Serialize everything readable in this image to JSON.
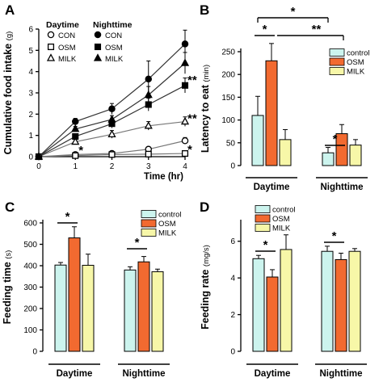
{
  "colors": {
    "control": "#ccf4ee",
    "OSM": "#f26a30",
    "MILK": "#f7f7a8"
  },
  "chart_data": [
    {
      "panel": "A",
      "type": "line",
      "ylabel": "Cumulative food intake",
      "yunit": "(g)",
      "xlabel": "Time (hr)",
      "ylim": [
        0,
        6
      ],
      "xlim": [
        0,
        4
      ],
      "xticks": [
        0,
        1,
        2,
        3,
        4
      ],
      "yticks": [
        0,
        1,
        2,
        3,
        4,
        5,
        6
      ],
      "legend_headers": [
        "Daytime",
        "Nighttime"
      ],
      "series": [
        {
          "name": "CON",
          "period": "Daytime",
          "marker": "open-circle",
          "x": [
            0,
            1,
            2,
            3,
            4
          ],
          "y": [
            0.0,
            0.1,
            0.15,
            0.35,
            0.75
          ],
          "err": [
            0,
            0.05,
            0.06,
            0.1,
            0.15
          ]
        },
        {
          "name": "OSM",
          "period": "Daytime",
          "marker": "open-square",
          "x": [
            0,
            1,
            2,
            3,
            4
          ],
          "y": [
            0.0,
            0.05,
            0.1,
            0.12,
            0.15
          ],
          "err": [
            0,
            0.03,
            0.04,
            0.05,
            0.05
          ]
        },
        {
          "name": "MILK",
          "period": "Daytime",
          "marker": "open-triangle",
          "x": [
            0,
            1,
            2,
            3,
            4
          ],
          "y": [
            0.0,
            0.7,
            1.05,
            1.45,
            1.65
          ],
          "err": [
            0,
            0.12,
            0.18,
            0.2,
            0.22
          ]
        },
        {
          "name": "CON",
          "period": "Nighttime",
          "marker": "filled-circle",
          "x": [
            0,
            1,
            2,
            3,
            4
          ],
          "y": [
            0.0,
            1.65,
            2.25,
            3.65,
            5.3
          ],
          "err": [
            0,
            0.15,
            0.25,
            0.85,
            0.65
          ]
        },
        {
          "name": "OSM",
          "period": "Nighttime",
          "marker": "filled-square",
          "x": [
            0,
            1,
            2,
            3,
            4
          ],
          "y": [
            0.0,
            0.95,
            1.55,
            2.45,
            3.35
          ],
          "err": [
            0,
            0.1,
            0.2,
            0.3,
            0.35
          ]
        },
        {
          "name": "MILK",
          "period": "Nighttime",
          "marker": "filled-triangle",
          "x": [
            0,
            1,
            2,
            3,
            4
          ],
          "y": [
            0.0,
            1.3,
            1.75,
            2.9,
            4.4
          ],
          "err": [
            0,
            0.12,
            0.18,
            0.4,
            0.5
          ]
        }
      ],
      "annotations": [
        {
          "text": "**",
          "x": 4,
          "y": 3.6
        },
        {
          "text": "**",
          "x": 4,
          "y": 1.8
        },
        {
          "text": "*",
          "x": 4,
          "y": 0.35
        },
        {
          "text": "*",
          "x": 1,
          "y": 0.3
        }
      ]
    },
    {
      "panel": "B",
      "type": "bar",
      "ylabel": "Latency to eat",
      "yunit": "(min)",
      "ylim": [
        0,
        250
      ],
      "yticks": [
        0,
        50,
        100,
        150,
        200,
        250
      ],
      "groups": [
        "Daytime",
        "Nighttime"
      ],
      "series": [
        {
          "name": "control",
          "values": [
            110,
            28
          ],
          "err": [
            42,
            12
          ]
        },
        {
          "name": "OSM",
          "values": [
            230,
            70
          ],
          "err": [
            38,
            20
          ]
        },
        {
          "name": "MILK",
          "values": [
            57,
            45
          ],
          "err": [
            22,
            12
          ]
        }
      ],
      "legend": [
        "control",
        "OSM",
        "MILK"
      ],
      "annotations": [
        "*",
        "*",
        "**",
        "*"
      ]
    },
    {
      "panel": "C",
      "type": "bar",
      "ylabel": "Feeding time",
      "yunit": "(s)",
      "ylim": [
        0,
        600
      ],
      "yticks": [
        0,
        100,
        200,
        300,
        400,
        500,
        600
      ],
      "groups": [
        "Daytime",
        "Nighttime"
      ],
      "series": [
        {
          "name": "control",
          "values": [
            403,
            380
          ],
          "err": [
            12,
            15
          ]
        },
        {
          "name": "OSM",
          "values": [
            530,
            418
          ],
          "err": [
            52,
            25
          ]
        },
        {
          "name": "MILK",
          "values": [
            402,
            372
          ],
          "err": [
            52,
            12
          ]
        }
      ],
      "legend": [
        "control",
        "OSM",
        "MILK"
      ],
      "annotations": [
        "*",
        "*"
      ]
    },
    {
      "panel": "D",
      "type": "bar",
      "ylabel": "Feeding rate",
      "yunit": "(mg/s)",
      "ylim": [
        0,
        7
      ],
      "yticks": [
        0,
        2,
        4,
        6
      ],
      "groups": [
        "Daytime",
        "Nighttime"
      ],
      "series": [
        {
          "name": "control",
          "values": [
            5.05,
            5.45
          ],
          "err": [
            0.18,
            0.28
          ]
        },
        {
          "name": "OSM",
          "values": [
            4.05,
            5.0
          ],
          "err": [
            0.4,
            0.35
          ]
        },
        {
          "name": "MILK",
          "values": [
            5.55,
            5.45
          ],
          "err": [
            0.8,
            0.15
          ]
        }
      ],
      "legend": [
        "control",
        "OSM",
        "MILK"
      ],
      "annotations": [
        "*",
        "*"
      ]
    }
  ]
}
